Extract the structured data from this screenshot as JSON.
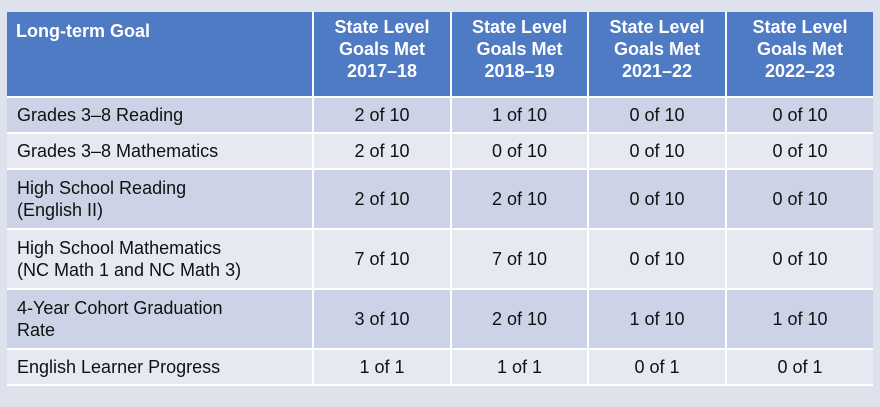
{
  "table": {
    "headers": [
      {
        "lines": [
          "Long-term Goal"
        ]
      },
      {
        "lines": [
          "State Level",
          "Goals Met",
          "2017–18"
        ]
      },
      {
        "lines": [
          "State Level",
          "Goals Met",
          "2018–19"
        ]
      },
      {
        "lines": [
          "State Level",
          "Goals Met",
          "2021–22"
        ]
      },
      {
        "lines": [
          "State Level",
          "Goals Met",
          "2022–23"
        ]
      }
    ],
    "rows": [
      {
        "goal_lines": [
          "Grades 3–8 Reading"
        ],
        "values": [
          "2 of 10",
          "1 of 10",
          "0 of 10",
          "0 of 10"
        ]
      },
      {
        "goal_lines": [
          "Grades 3–8 Mathematics"
        ],
        "values": [
          "2 of 10",
          "0 of 10",
          "0 of 10",
          "0 of 10"
        ]
      },
      {
        "goal_lines": [
          "High School Reading",
          "(English II)"
        ],
        "values": [
          "2 of 10",
          "2 of 10",
          "0 of 10",
          "0 of 10"
        ]
      },
      {
        "goal_lines": [
          "High School Mathematics",
          "(NC Math 1 and NC Math 3)"
        ],
        "values": [
          "7 of 10",
          "7 of 10",
          "0 of 10",
          "0 of 10"
        ]
      },
      {
        "goal_lines": [
          "4-Year Cohort Graduation",
          "Rate"
        ],
        "values": [
          "3 of 10",
          "2 of 10",
          "1 of 10",
          "1 of 10"
        ]
      },
      {
        "goal_lines": [
          "English Learner Progress"
        ],
        "values": [
          "1 of 1",
          "1 of 1",
          "0 of 1",
          "0 of 1"
        ]
      }
    ]
  },
  "colors": {
    "header_bg": "#4f7ac4",
    "row_dark": "#cdd3e6",
    "row_light": "#e6e9f2"
  }
}
